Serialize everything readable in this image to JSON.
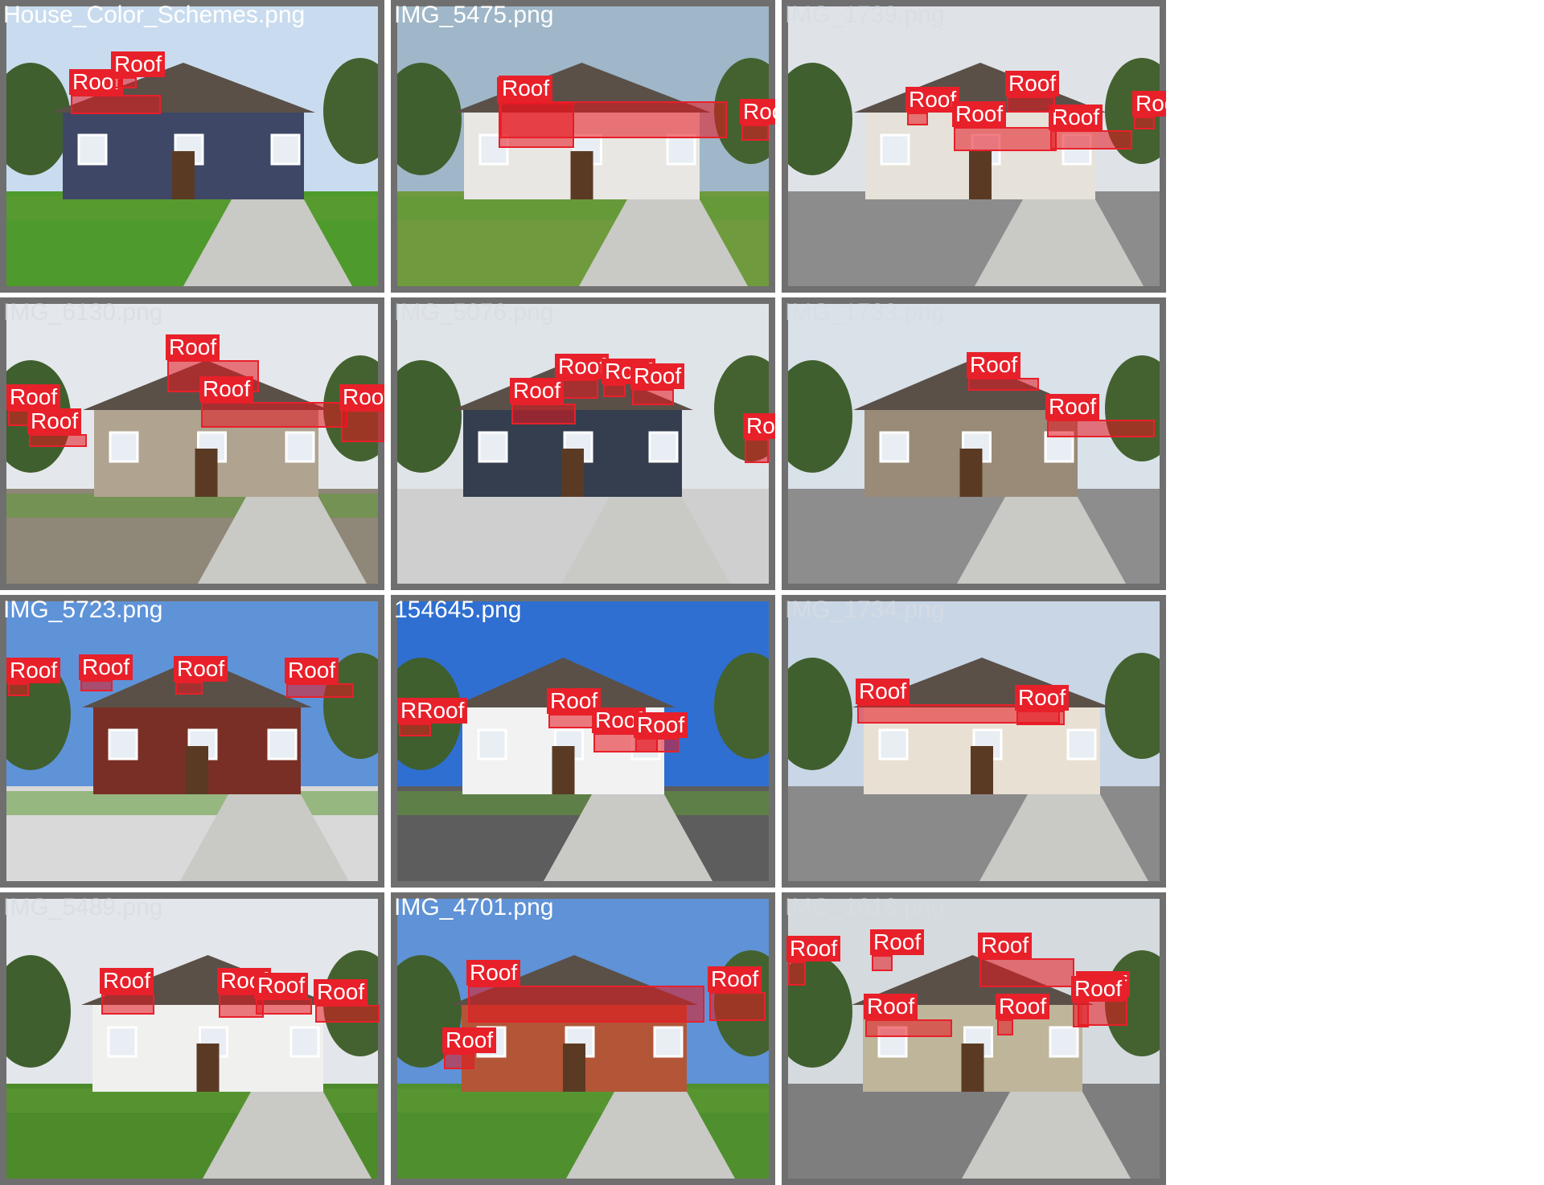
{
  "box_color": "#e8202a",
  "frame_color": "#6f6f6f",
  "tiles": [
    {
      "file": "House_Color_Schemes.png",
      "labels": [
        "Roof",
        "Roof"
      ],
      "sky": "#c9dcef",
      "wall": "#3e4766",
      "ground": "#4f9a2c"
    },
    {
      "file": "IMG_5475.png",
      "labels": [
        "Roof",
        "Roof",
        "Roof"
      ],
      "sky": "#9fb7c8",
      "wall": "#e9e7e3",
      "ground": "#6f9a3e"
    },
    {
      "file": "IMG_1739.png",
      "labels": [
        "Roof",
        "Roof",
        "Roof",
        "Roof",
        "Roof"
      ],
      "sky": "#dfe3e8",
      "wall": "#e6e2da",
      "ground": "#8c8c8c"
    },
    {
      "file": "IMG_6130.png",
      "labels": [
        "Roof",
        "Roof",
        "Roof",
        "Roof",
        "Roof"
      ],
      "sky": "#e4e8ec",
      "wall": "#b0a491",
      "ground": "#8f8778"
    },
    {
      "file": "IMG_5076.png",
      "labels": [
        "Roof",
        "Roof",
        "Roof",
        "Roof",
        "Roof"
      ],
      "sky": "#dfe4e9",
      "wall": "#343e4f",
      "ground": "#cfcfcf"
    },
    {
      "file": "IMG_1733.png",
      "labels": [
        "Roof",
        "Roof"
      ],
      "sky": "#d9e1e9",
      "wall": "#9a8b78",
      "ground": "#8d8d8d"
    },
    {
      "file": "IMG_5723.png",
      "labels": [
        "Roof",
        "Roof",
        "Roof",
        "Roof"
      ],
      "sky": "#5f93d8",
      "wall": "#7a2f26",
      "ground": "#d9d9d9"
    },
    {
      "file": "154645.png",
      "labels": [
        "RRoof",
        "Roof",
        "Roof",
        "Roof"
      ],
      "sky": "#2f6fd1",
      "wall": "#f2f2f2",
      "ground": "#5d5d5d"
    },
    {
      "file": "IMG_1734.png",
      "labels": [
        "Roof",
        "Roof"
      ],
      "sky": "#c9d6e6",
      "wall": "#e8e0d3",
      "ground": "#8a8a8a"
    },
    {
      "file": "IMG_5489.png",
      "labels": [
        "Roof",
        "Roof",
        "Roof",
        "Roof"
      ],
      "sky": "#e3e6ea",
      "wall": "#f0f0ef",
      "ground": "#4d8a2a"
    },
    {
      "file": "IMG_4701.png",
      "labels": [
        "Roof",
        "Roof",
        "Roof"
      ],
      "sky": "#5f92d6",
      "wall": "#b25637",
      "ground": "#4f8f2e"
    },
    {
      "file": "IMG_1618.png",
      "labels": [
        "Roof",
        "Roof",
        "Roof",
        "Roof",
        "Roof",
        "Roof",
        "Roof"
      ],
      "sky": "#d5dade",
      "wall": "#bfb59b",
      "ground": "#7e7e7e"
    }
  ]
}
